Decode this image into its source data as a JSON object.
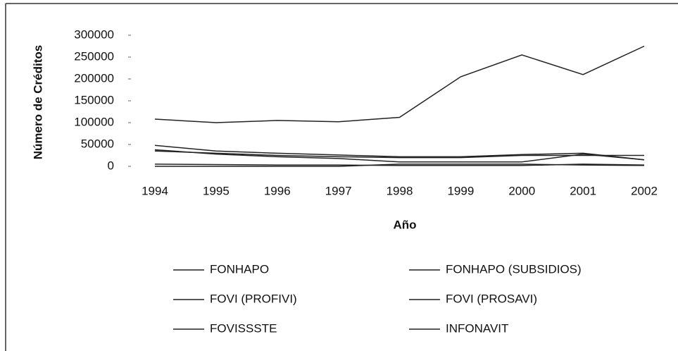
{
  "chart_data": {
    "type": "line",
    "x_label": "Año",
    "y_label": "Número de Créditos",
    "x": [
      1994,
      1995,
      1996,
      1997,
      1998,
      1999,
      2000,
      2001,
      2002
    ],
    "xlim": [
      1994,
      2002
    ],
    "ylim": [
      0,
      300000
    ],
    "yticks": [
      0,
      50000,
      100000,
      150000,
      200000,
      250000,
      300000
    ],
    "series": [
      {
        "name": "FONHAPO",
        "color": "#222222",
        "values": [
          38000,
          28000,
          22000,
          18000,
          10000,
          10000,
          10000,
          28000,
          15000
        ]
      },
      {
        "name": "FONHAPO (SUBSIDIOS)",
        "color": "#222222",
        "values": [
          5000,
          4000,
          3000,
          3000,
          2000,
          2000,
          2000,
          5000,
          3000
        ]
      },
      {
        "name": "FOVI (PROFIVI)",
        "color": "#222222",
        "values": [
          35000,
          30000,
          25000,
          22000,
          20000,
          20000,
          25000,
          25000,
          25000
        ]
      },
      {
        "name": "FOVI (PROSAVI)",
        "color": "#222222",
        "values": [
          0,
          0,
          0,
          0,
          5000,
          5000,
          5000,
          3000,
          2000
        ]
      },
      {
        "name": "FOVISSSTE",
        "color": "#222222",
        "values": [
          48000,
          35000,
          30000,
          26000,
          22000,
          22000,
          27000,
          30000,
          15000
        ]
      },
      {
        "name": "INFONAVIT",
        "color": "#222222",
        "values": [
          108000,
          100000,
          105000,
          102000,
          112000,
          205000,
          255000,
          210000,
          275000
        ]
      }
    ]
  }
}
